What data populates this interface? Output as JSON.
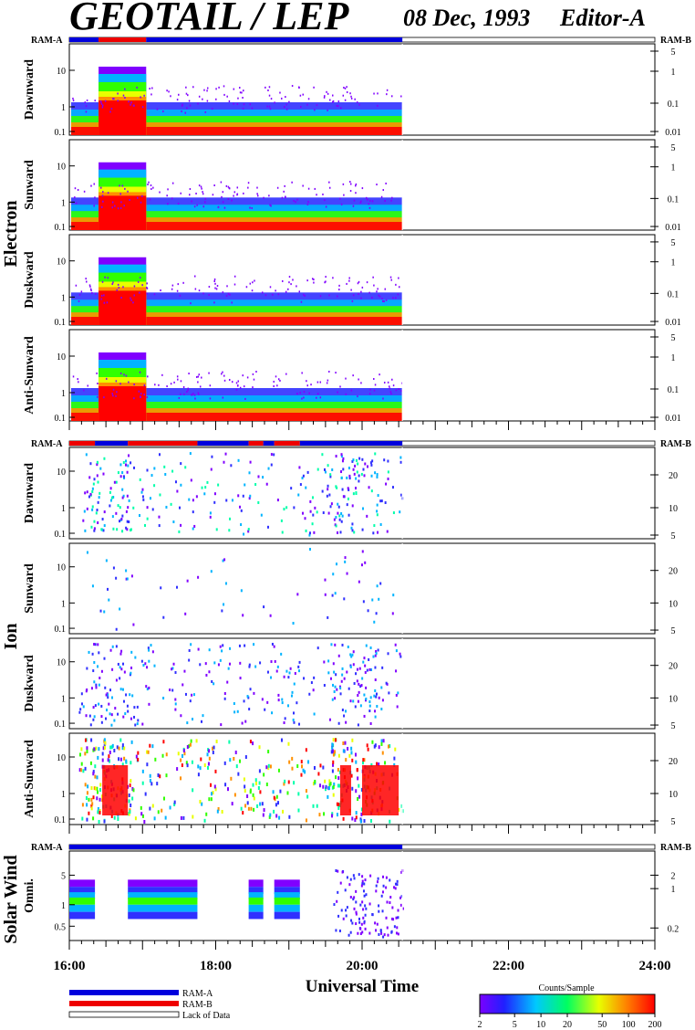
{
  "title": "GEOTAIL / LEP",
  "date": "08 Dec, 1993",
  "editor": "Editor-A",
  "xlabel": "Universal Time",
  "colorbar": {
    "label": "Counts/Sample",
    "ticks": [
      "2",
      "5",
      "10",
      "20",
      "50",
      "100",
      "200"
    ]
  },
  "ram_labels": {
    "left": "RAM-A",
    "right": "RAM-B"
  },
  "legend": [
    {
      "label": "RAM-A",
      "color": "#0000dd",
      "style": "solid"
    },
    {
      "label": "RAM-B",
      "color": "#ee0000",
      "style": "solid"
    },
    {
      "label": "Lack of Data",
      "color": "#ffffff",
      "style": "double-line"
    }
  ],
  "colors": {
    "ram_a": "#0000dd",
    "ram_b": "#ee0000"
  },
  "chart_data": {
    "type": "heatmap",
    "x_range_hours": [
      16,
      24
    ],
    "x_ticks": [
      "16:00",
      "18:00",
      "20:00",
      "22:00",
      "24:00"
    ],
    "data_end_hour": 20.55,
    "sections": [
      {
        "name": "Electron",
        "ram_bar": [
          {
            "start": 16.0,
            "end": 16.4,
            "mode": "A"
          },
          {
            "start": 16.4,
            "end": 17.05,
            "mode": "B"
          },
          {
            "start": 17.05,
            "end": 20.55,
            "mode": "A"
          }
        ],
        "panels": [
          {
            "label": "Dawnward",
            "left_ticks": [
              "10",
              "1",
              "0.1"
            ],
            "right_ticks": [
              "5",
              "1",
              "0.1",
              "0.01"
            ]
          },
          {
            "label": "Sunward",
            "left_ticks": [
              "10",
              "1",
              "0.1"
            ],
            "right_ticks": [
              "5",
              "1",
              "0.1",
              "0.01"
            ]
          },
          {
            "label": "Duskward",
            "left_ticks": [
              "10",
              "1",
              "0.1"
            ],
            "right_ticks": [
              "5",
              "1",
              "0.1",
              "0.01"
            ]
          },
          {
            "label": "Anti-Sunward",
            "left_ticks": [
              "10",
              "1",
              "0.1"
            ],
            "right_ticks": [
              "5",
              "1",
              "0.1",
              "0.01"
            ]
          }
        ]
      },
      {
        "name": "Ion",
        "ram_bar": [
          {
            "start": 16.0,
            "end": 16.35,
            "mode": "B"
          },
          {
            "start": 16.35,
            "end": 16.8,
            "mode": "A"
          },
          {
            "start": 16.8,
            "end": 17.75,
            "mode": "B"
          },
          {
            "start": 17.75,
            "end": 18.45,
            "mode": "A"
          },
          {
            "start": 18.45,
            "end": 18.65,
            "mode": "B"
          },
          {
            "start": 18.65,
            "end": 18.8,
            "mode": "A"
          },
          {
            "start": 18.8,
            "end": 19.15,
            "mode": "B"
          },
          {
            "start": 19.15,
            "end": 20.55,
            "mode": "A"
          }
        ],
        "panels": [
          {
            "label": "Dawnward",
            "left_ticks": [
              "10",
              "1",
              "0.1"
            ],
            "right_ticks": [
              "20",
              "10",
              "5"
            ]
          },
          {
            "label": "Sunward",
            "left_ticks": [
              "10",
              "1",
              "0.1"
            ],
            "right_ticks": [
              "20",
              "10",
              "5"
            ]
          },
          {
            "label": "Duskward",
            "left_ticks": [
              "10",
              "1",
              "0.1"
            ],
            "right_ticks": [
              "20",
              "10",
              "5"
            ]
          },
          {
            "label": "Anti-Sunward",
            "left_ticks": [
              "10",
              "1",
              "0.1"
            ],
            "right_ticks": [
              "20",
              "10",
              "5"
            ]
          }
        ]
      },
      {
        "name": "Solar Wind",
        "ram_bar": [
          {
            "start": 16.0,
            "end": 20.55,
            "mode": "A"
          }
        ],
        "panels": [
          {
            "label": "Omni.",
            "left_ticks": [
              "5",
              "1",
              "0.5"
            ],
            "right_ticks": [
              "2",
              "1",
              "0.2"
            ]
          }
        ]
      }
    ]
  }
}
